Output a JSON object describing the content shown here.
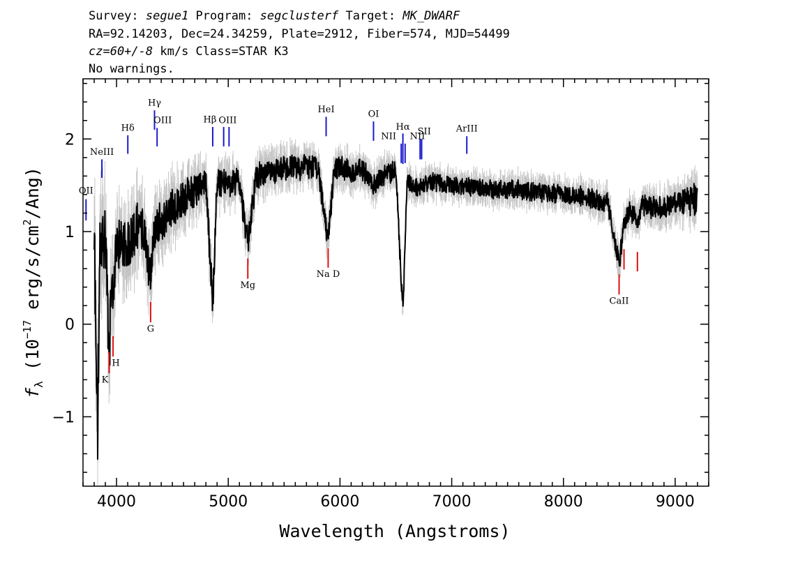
{
  "header": {
    "line1": {
      "survey_label": "Survey: ",
      "survey": "segue1",
      "program_label": " Program: ",
      "program": "segclusterf",
      "target_label": " Target: ",
      "target": "MK_DWARF"
    },
    "line2": "RA=92.14203, Dec=24.34259, Plate=2912, Fiber=574, MJD=54499",
    "line3": {
      "cz": "cz=60+/-8",
      "rest": " km/s Class=STAR K3"
    },
    "line4": "No warnings."
  },
  "colors": {
    "flux": "#000000",
    "error_band": "#c4c4c4",
    "emission": "#1a1acc",
    "absorption": "#dd1111",
    "frame": "#000000"
  },
  "chart_data": {
    "type": "line",
    "title": "",
    "xlabel": "Wavelength (Angstroms)",
    "ylabel_parts": {
      "f": "f",
      "sub": "λ",
      "pre": " (10",
      "exp1": "−17",
      "mid": " erg/s/cm",
      "exp2": "2",
      "post": "/Ang)"
    },
    "xlim": [
      3700,
      9300
    ],
    "ylim": [
      -1.75,
      2.65
    ],
    "xticks": [
      4000,
      5000,
      6000,
      7000,
      8000,
      9000
    ],
    "xtick_labels": [
      "4000",
      "5000",
      "6000",
      "7000",
      "8000",
      "9000"
    ],
    "yticks": [
      -1,
      0,
      1,
      2
    ],
    "ytick_labels": [
      "−1",
      "0",
      "1",
      "2"
    ],
    "grid": false,
    "series": [
      {
        "role": "flux",
        "x": [
          3800,
          3830,
          3850,
          3900,
          3933,
          3968,
          4000,
          4050,
          4101,
          4150,
          4200,
          4250,
          4300,
          4340,
          4400,
          4500,
          4600,
          4700,
          4800,
          4861,
          4900,
          5000,
          5100,
          5175,
          5250,
          5400,
          5600,
          5800,
          5893,
          5950,
          6000,
          6100,
          6200,
          6300,
          6400,
          6500,
          6563,
          6600,
          6700,
          6800,
          7000,
          7200,
          7400,
          7600,
          7800,
          8000,
          8200,
          8400,
          8498,
          8542,
          8600,
          8662,
          8700,
          8800,
          8900,
          9000,
          9100,
          9200
        ],
        "y": [
          1.0,
          -1.2,
          0.7,
          1.0,
          -0.2,
          0.4,
          0.8,
          0.9,
          0.85,
          1.0,
          1.05,
          1.0,
          0.5,
          1.0,
          1.1,
          1.25,
          1.35,
          1.45,
          1.55,
          0.2,
          1.55,
          1.5,
          1.55,
          0.85,
          1.6,
          1.65,
          1.7,
          1.7,
          0.9,
          1.68,
          1.7,
          1.65,
          1.68,
          1.5,
          1.62,
          1.65,
          0.15,
          1.55,
          1.45,
          1.55,
          1.5,
          1.48,
          1.45,
          1.45,
          1.42,
          1.4,
          1.38,
          1.3,
          0.65,
          1.1,
          1.25,
          1.05,
          1.28,
          1.25,
          1.28,
          1.3,
          1.32,
          1.35
        ]
      },
      {
        "role": "error_halfwidth",
        "x": [
          3800,
          4000,
          4500,
          5000,
          6000,
          7000,
          8000,
          9000,
          9200
        ],
        "y": [
          0.6,
          0.35,
          0.25,
          0.18,
          0.15,
          0.12,
          0.12,
          0.15,
          0.2
        ]
      }
    ],
    "emission_lines": [
      {
        "label": "OII",
        "wave": 3727,
        "y0": 1.12,
        "y1": 1.35,
        "label_y": 1.41,
        "label_dx": 0
      },
      {
        "label": "NeIII",
        "wave": 3869,
        "y0": 1.58,
        "y1": 1.78,
        "label_y": 1.83,
        "label_dx": 0
      },
      {
        "label": "Hδ",
        "wave": 4101,
        "y0": 1.84,
        "y1": 2.04,
        "label_y": 2.09,
        "label_dx": 0
      },
      {
        "label": "Hγ",
        "wave": 4340,
        "y0": 2.1,
        "y1": 2.31,
        "label_y": 2.36,
        "label_dx": 0
      },
      {
        "label": "OIII",
        "wave": 4363,
        "y0": 1.92,
        "y1": 2.12,
        "label_y": 2.17,
        "label_dx": 8
      },
      {
        "label": "Hβ",
        "wave": 4861,
        "y0": 1.92,
        "y1": 2.13,
        "label_y": 2.18,
        "label_dx": -4
      },
      {
        "label": "OIII",
        "wave": 4959,
        "y0": 1.92,
        "y1": 2.13,
        "label_y": 0,
        "label_dx": 0
      },
      {
        "label": "OIII",
        "wave": 5007,
        "y0": 1.92,
        "y1": 2.13,
        "label_y": 2.17,
        "label_dx": -2
      },
      {
        "label": "HeI",
        "wave": 5876,
        "y0": 2.03,
        "y1": 2.24,
        "label_y": 2.29,
        "label_dx": 0
      },
      {
        "label": "OI",
        "wave": 6300,
        "y0": 1.98,
        "y1": 2.19,
        "label_y": 2.24,
        "label_dx": 0
      },
      {
        "label": "NII",
        "wave": 6548,
        "y0": 1.74,
        "y1": 1.95,
        "label_y": 2.0,
        "label_dx": -18
      },
      {
        "label": "Hα",
        "wave": 6563,
        "y0": 1.73,
        "y1": 2.06,
        "label_y": 2.1,
        "label_dx": 0
      },
      {
        "label": "NII",
        "wave": 6583,
        "y0": 1.74,
        "y1": 1.95,
        "label_y": 0,
        "label_dx": 0
      },
      {
        "label": "SII",
        "wave": 6717,
        "y0": 1.78,
        "y1": 2.0,
        "label_y": 2.05,
        "label_dx": 6
      },
      {
        "label": "NII",
        "wave": 6731,
        "y0": 1.78,
        "y1": 2.0,
        "label_y": 2.0,
        "label_dx": -6
      },
      {
        "label": "ArIII",
        "wave": 7135,
        "y0": 1.84,
        "y1": 2.03,
        "label_y": 2.08,
        "label_dx": 0
      }
    ],
    "absorption_lines": [
      {
        "label": "K",
        "wave": 3934,
        "y0": -0.53,
        "y1": -0.3,
        "label_y": -0.63,
        "label_dx": -6
      },
      {
        "label": "H",
        "wave": 3969,
        "y0": -0.35,
        "y1": -0.13,
        "label_y": -0.45,
        "label_dx": 4
      },
      {
        "label": "G",
        "wave": 4305,
        "y0": 0.02,
        "y1": 0.24,
        "label_y": -0.08,
        "label_dx": 0
      },
      {
        "label": "Mg",
        "wave": 5175,
        "y0": 0.49,
        "y1": 0.71,
        "label_y": 0.39,
        "label_dx": 0
      },
      {
        "label": "Na D",
        "wave": 5894,
        "y0": 0.61,
        "y1": 0.82,
        "label_y": 0.51,
        "label_dx": 0
      },
      {
        "label": "CaII",
        "wave": 8498,
        "y0": 0.32,
        "y1": 0.54,
        "label_y": 0.22,
        "label_dx": 0
      },
      {
        "label": "CaII",
        "wave": 8542,
        "y0": 0.59,
        "y1": 0.81,
        "label_y": 0,
        "label_dx": 0
      },
      {
        "label": "CaII",
        "wave": 8662,
        "y0": 0.57,
        "y1": 0.78,
        "label_y": 0,
        "label_dx": 0
      }
    ]
  }
}
